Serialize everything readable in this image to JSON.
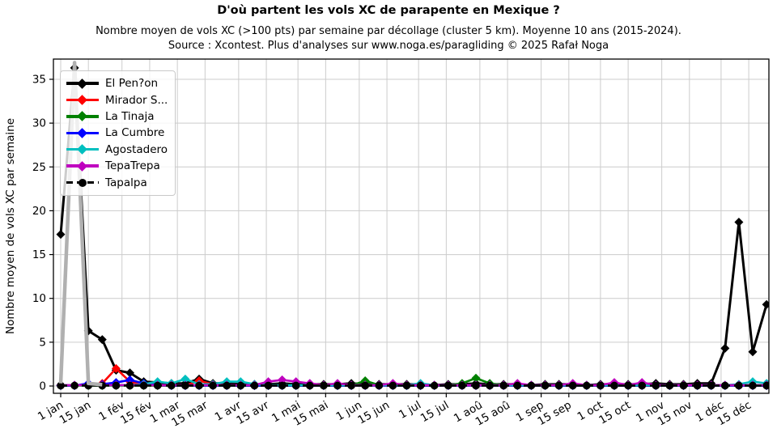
{
  "header": {
    "title": "D'où partent les vols XC de parapente en Mexique ?",
    "subtitle": "Nombre moyen de vols XC (>100 pts) par semaine par décollage (cluster 5 km). Moyenne 10 ans (2015-2024).",
    "source": "Source : Xcontest. Plus d'analyses sur www.noga.es/paragliding © 2025 Rafał Noga"
  },
  "chart_data": {
    "type": "line",
    "title": "D'où partent les vols XC de parapente en Mexique ?",
    "xlabel": "",
    "ylabel": "Nombre moyen de vols XC par semaine",
    "x_unit": "week of year (52 weekly points)",
    "ylim": [
      -0.9,
      37.3
    ],
    "yticks": [
      0,
      5,
      10,
      15,
      20,
      25,
      30,
      35
    ],
    "grid": true,
    "legend_position": "upper-left",
    "xticks": {
      "labels": [
        "1 jan",
        "15 jan",
        "1 fév",
        "15 fév",
        "1 mar",
        "15 mar",
        "1 avr",
        "15 avr",
        "1 mai",
        "15 mai",
        "1 jun",
        "15 jun",
        "1 jul",
        "15 jul",
        "1 aoû",
        "15 aoû",
        "1 sep",
        "15 sep",
        "1 oct",
        "15 oct",
        "1 nov",
        "15 nov",
        "1 déc",
        "15 déc"
      ],
      "day_offsets": [
        0,
        14,
        31,
        45,
        59,
        73,
        90,
        104,
        120,
        134,
        151,
        165,
        181,
        195,
        212,
        226,
        243,
        257,
        273,
        287,
        304,
        318,
        334,
        348
      ]
    },
    "series": [
      {
        "name": "El Pen?on",
        "color": "#000000",
        "marker": "diamond",
        "linestyle": "solid",
        "values": [
          17.3,
          36.3,
          6.3,
          5.3,
          1.8,
          1.5,
          0.5,
          0.4,
          0.3,
          0.3,
          0.8,
          0.3,
          0.3,
          0.2,
          0.2,
          0.2,
          0.3,
          0.2,
          0.2,
          0.2,
          0.2,
          0.3,
          0.2,
          0.2,
          0.2,
          0.2,
          0.2,
          0.1,
          0.2,
          0.2,
          0.3,
          0.2,
          0.2,
          0.2,
          0.1,
          0.2,
          0.2,
          0.2,
          0.1,
          0.2,
          0.2,
          0.2,
          0.2,
          0.3,
          0.2,
          0.2,
          0.3,
          0.3,
          4.3,
          18.7,
          3.9,
          9.3
        ]
      },
      {
        "name": "Mirador S...",
        "color": "#ff0000",
        "marker": "diamond",
        "linestyle": "solid",
        "values": [
          0.05,
          0.05,
          0.1,
          0.3,
          2.0,
          0.5,
          0.1,
          0.05,
          0.05,
          0.05,
          0.6,
          0.2,
          0.05,
          0.05,
          0.05,
          0.05,
          0.05,
          0.05,
          0.05,
          0.05,
          0.05,
          0.05,
          0.05,
          0.05,
          0.05,
          0.1,
          0.05,
          0.05,
          0.05,
          0.05,
          0.05,
          0.05,
          0.05,
          0.05,
          0.05,
          0.05,
          0.05,
          0.05,
          0.05,
          0.05,
          0.05,
          0.05,
          0.05,
          0.05,
          0.05,
          0.05,
          0.05,
          0.05,
          0.05,
          0.1,
          0.05,
          0.05
        ]
      },
      {
        "name": "La Tinaja",
        "color": "#008000",
        "marker": "diamond",
        "linestyle": "solid",
        "values": [
          0.05,
          0.05,
          0.05,
          0.05,
          0.05,
          0.05,
          0.05,
          0.05,
          0.05,
          0.05,
          0.05,
          0.05,
          0.05,
          0.05,
          0.05,
          0.05,
          0.05,
          0.05,
          0.05,
          0.05,
          0.05,
          0.05,
          0.6,
          0.1,
          0.05,
          0.05,
          0.05,
          0.05,
          0.1,
          0.3,
          0.9,
          0.3,
          0.1,
          0.05,
          0.05,
          0.05,
          0.05,
          0.05,
          0.05,
          0.05,
          0.05,
          0.05,
          0.05,
          0.05,
          0.05,
          0.05,
          0.05,
          0.05,
          0.05,
          0.05,
          0.05,
          0.05
        ]
      },
      {
        "name": "La Cumbre",
        "color": "#0000ff",
        "marker": "diamond",
        "linestyle": "solid",
        "values": [
          0.05,
          0.05,
          0.3,
          0.2,
          0.4,
          0.7,
          0.3,
          0.1,
          0.05,
          0.05,
          0.05,
          0.05,
          0.05,
          0.05,
          0.05,
          0.05,
          0.05,
          0.05,
          0.05,
          0.05,
          0.05,
          0.05,
          0.05,
          0.05,
          0.05,
          0.05,
          0.05,
          0.05,
          0.05,
          0.05,
          0.05,
          0.05,
          0.05,
          0.05,
          0.05,
          0.05,
          0.05,
          0.05,
          0.05,
          0.05,
          0.05,
          0.05,
          0.05,
          0.05,
          0.05,
          0.05,
          0.05,
          0.05,
          0.05,
          0.05,
          0.05,
          0.05
        ]
      },
      {
        "name": "Agostadero",
        "color": "#00bfbf",
        "marker": "diamond",
        "linestyle": "solid",
        "values": [
          0.1,
          0.1,
          0.1,
          0.1,
          0.1,
          0.1,
          0.2,
          0.5,
          0.3,
          0.8,
          0.2,
          0.2,
          0.5,
          0.5,
          0.2,
          0.1,
          0.1,
          0.1,
          0.1,
          0.1,
          0.1,
          0.1,
          0.1,
          0.1,
          0.1,
          0.1,
          0.3,
          0.1,
          0.1,
          0.1,
          0.1,
          0.1,
          0.1,
          0.1,
          0.1,
          0.1,
          0.1,
          0.1,
          0.1,
          0.1,
          0.1,
          0.1,
          0.1,
          0.1,
          0.1,
          0.1,
          0.1,
          0.1,
          0.1,
          0.2,
          0.5,
          0.3
        ]
      },
      {
        "name": "TepaTrepa",
        "color": "#bf00bf",
        "marker": "diamond",
        "linestyle": "solid",
        "values": [
          0.1,
          0.1,
          0.1,
          0.1,
          0.1,
          0.1,
          0.1,
          0.1,
          0.1,
          0.1,
          0.1,
          0.1,
          0.1,
          0.1,
          0.1,
          0.5,
          0.7,
          0.5,
          0.3,
          0.1,
          0.3,
          0.1,
          0.1,
          0.1,
          0.3,
          0.1,
          0.1,
          0.1,
          0.1,
          0.1,
          0.1,
          0.1,
          0.1,
          0.3,
          0.1,
          0.1,
          0.1,
          0.3,
          0.1,
          0.1,
          0.4,
          0.1,
          0.4,
          0.1,
          0.1,
          0.1,
          0.1,
          0.1,
          0.1,
          0.1,
          0.1,
          0.1
        ]
      },
      {
        "name": "Tapalpa",
        "color": "#000000",
        "marker": "circle",
        "linestyle": "dashed",
        "values": [
          0.05,
          0.05,
          0.05,
          0.05,
          0.05,
          0.05,
          0.05,
          0.05,
          0.05,
          0.05,
          0.05,
          0.05,
          0.05,
          0.05,
          0.05,
          0.05,
          0.05,
          0.05,
          0.05,
          0.05,
          0.05,
          0.05,
          0.05,
          0.05,
          0.05,
          0.05,
          0.05,
          0.05,
          0.05,
          0.05,
          0.05,
          0.05,
          0.05,
          0.05,
          0.05,
          0.05,
          0.05,
          0.05,
          0.05,
          0.05,
          0.05,
          0.05,
          0.05,
          0.05,
          0.05,
          0.05,
          0.05,
          0.05,
          0.05,
          0.05,
          0.05,
          0.05
        ]
      },
      {
        "name": "",
        "note": "unlabeled thick gray spike behind legend",
        "color": "#b0b0b0",
        "marker": "none",
        "linestyle": "solid",
        "points": [
          [
            0,
            0.3
          ],
          [
            1,
            36.9
          ],
          [
            2,
            0.3
          ],
          [
            3,
            0.15
          ]
        ]
      }
    ]
  }
}
